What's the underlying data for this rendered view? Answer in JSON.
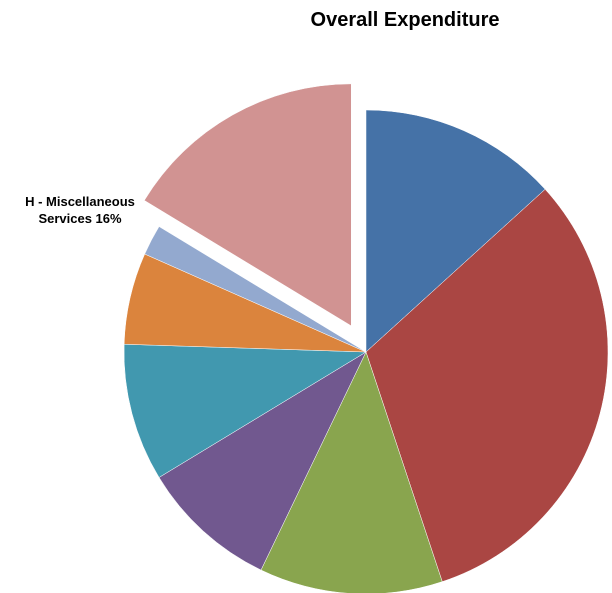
{
  "chart_data": {
    "type": "pie",
    "title": "Overall Expenditure",
    "slices": [
      {
        "value": 13,
        "color": "#4572A7",
        "exploded": false,
        "label": ""
      },
      {
        "value": 31,
        "color": "#AA4643",
        "exploded": false,
        "label": ""
      },
      {
        "value": 12,
        "color": "#89A54E",
        "exploded": false,
        "label": ""
      },
      {
        "value": 9,
        "color": "#71588F",
        "exploded": false,
        "label": ""
      },
      {
        "value": 9,
        "color": "#4198AF",
        "exploded": false,
        "label": ""
      },
      {
        "value": 6,
        "color": "#DB843D",
        "exploded": false,
        "label": ""
      },
      {
        "value": 2,
        "color": "#93A9CF",
        "exploded": false,
        "label": ""
      },
      {
        "value": 16,
        "color": "#D19392",
        "exploded": true,
        "label_lines": [
          "H - Miscellaneous",
          "Services 16%"
        ]
      }
    ]
  }
}
